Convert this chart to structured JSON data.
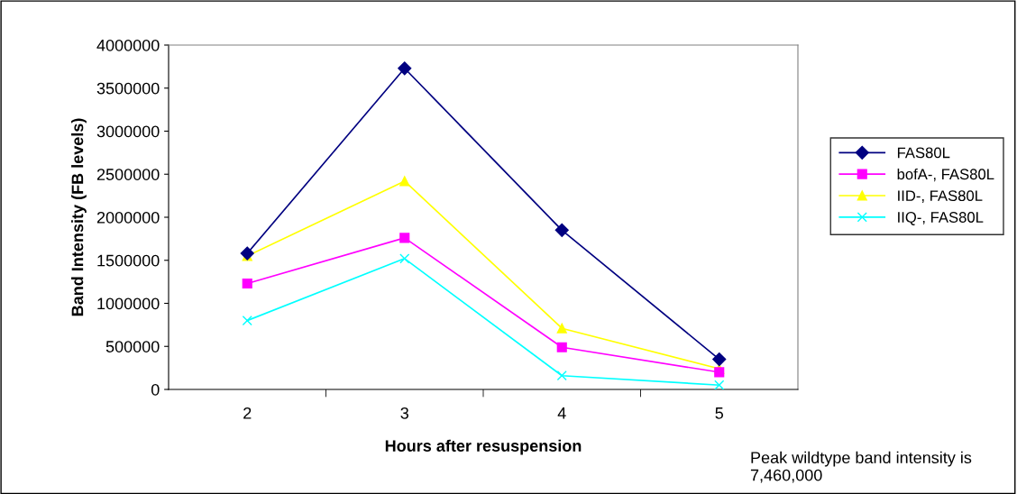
{
  "chart_data": {
    "type": "line",
    "xlabel": "Hours after resuspension",
    "ylabel": "Band Intensity (FB levels)",
    "categories": [
      "2",
      "3",
      "4",
      "5"
    ],
    "series": [
      {
        "name": "FAS80L",
        "color": "#000080",
        "marker": "diamond",
        "values": [
          1580000,
          3730000,
          1850000,
          350000
        ]
      },
      {
        "name": "bofA-, FAS80L",
        "color": "#ff00ff",
        "marker": "square",
        "values": [
          1230000,
          1760000,
          490000,
          200000
        ]
      },
      {
        "name": "IID-, FAS80L",
        "color": "#ffff00",
        "marker": "triangle",
        "values": [
          1550000,
          2420000,
          710000,
          240000
        ]
      },
      {
        "name": "IIQ-, FAS80L",
        "color": "#00ffff",
        "marker": "cross",
        "values": [
          800000,
          1520000,
          160000,
          50000
        ]
      }
    ],
    "ylim": [
      0,
      4000000
    ],
    "yticks": [
      0,
      500000,
      1000000,
      1500000,
      2000000,
      2500000,
      3000000,
      3500000,
      4000000
    ],
    "grid": false,
    "legend": "right",
    "annotations": [
      "Peak wildtype band intensity is 7,460,000"
    ]
  }
}
